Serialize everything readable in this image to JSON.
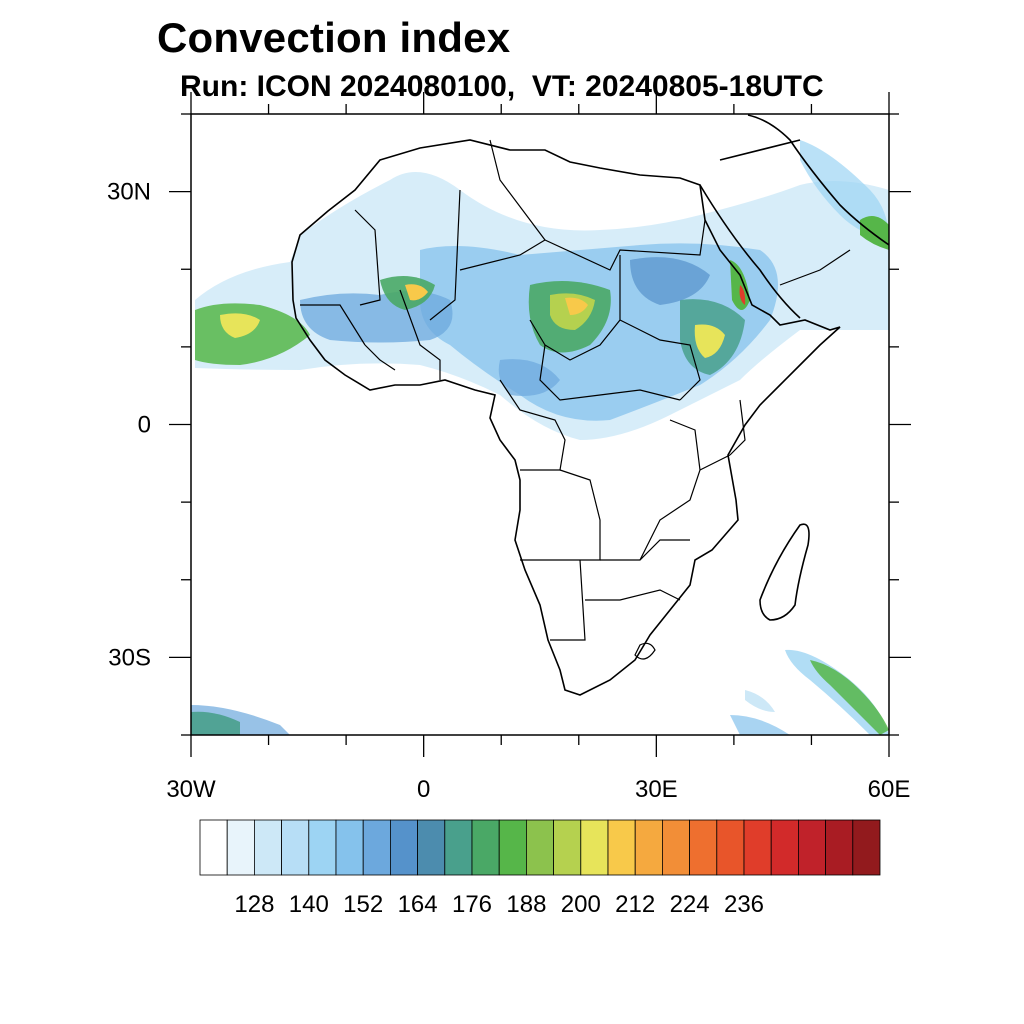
{
  "title": "Convection index",
  "subtitle": "Run: ICON 2024080100,  VT: 20240805-18UTC",
  "map": {
    "lon_range": [
      -30,
      60
    ],
    "lat_range": [
      -40,
      40
    ],
    "lat_ticks": [
      {
        "value": 30,
        "label": "30N"
      },
      {
        "value": 0,
        "label": "0"
      },
      {
        "value": -30,
        "label": "30S"
      }
    ],
    "lon_ticks": [
      {
        "value": -30,
        "label": "30W"
      },
      {
        "value": 0,
        "label": "0"
      },
      {
        "value": 30,
        "label": "30E"
      },
      {
        "value": 60,
        "label": "60E"
      }
    ],
    "minor_lat_ticks": [
      40,
      20,
      10,
      -10,
      -20,
      -40
    ],
    "minor_lon_ticks": [
      -20,
      -10,
      10,
      20,
      40,
      50
    ]
  },
  "colorbar": {
    "colors": [
      "#ffffff",
      "#e8f4fb",
      "#cde8f7",
      "#b7def6",
      "#9dd4f3",
      "#85c2ec",
      "#6ca8dd",
      "#5592cb",
      "#4c8cae",
      "#49a08c",
      "#4aa866",
      "#56b649",
      "#8cc24d",
      "#b5d14f",
      "#e7e45a",
      "#f8c94a",
      "#f5a93f",
      "#f28e37",
      "#ee6f2f",
      "#e8552a",
      "#e03d2a",
      "#d22a2a",
      "#c0222a",
      "#a91c23",
      "#921a1d"
    ],
    "labels": [
      "128",
      "140",
      "152",
      "164",
      "176",
      "188",
      "200",
      "212",
      "224",
      "236"
    ]
  }
}
